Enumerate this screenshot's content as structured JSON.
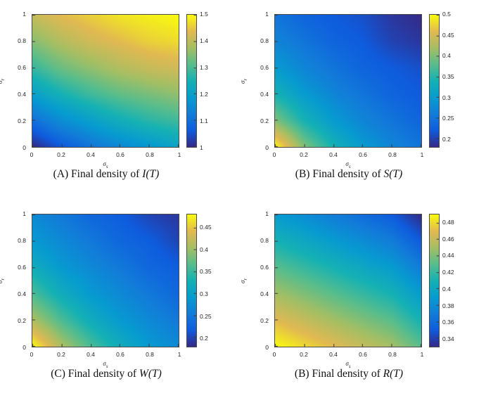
{
  "page": {
    "background": "#ffffff"
  },
  "colormap": {
    "name": "parula",
    "stops": [
      [
        0.0,
        53,
        42,
        135
      ],
      [
        0.125,
        15,
        92,
        221
      ],
      [
        0.25,
        18,
        125,
        216
      ],
      [
        0.375,
        7,
        156,
        207
      ],
      [
        0.5,
        21,
        177,
        180
      ],
      [
        0.625,
        89,
        189,
        140
      ],
      [
        0.75,
        165,
        190,
        100
      ],
      [
        0.875,
        225,
        185,
        82
      ],
      [
        1.0,
        249,
        251,
        14
      ]
    ]
  },
  "chart_data": [
    {
      "type": "heatmap",
      "caption_prefix": "(A) Final density of",
      "caption_math": "I(T)",
      "xlabel": {
        "base": "σ",
        "sub": "s"
      },
      "ylabel": {
        "base": "σ",
        "sub": "r"
      },
      "x_ticks": [
        "0",
        "0.2",
        "0.4",
        "0.6",
        "0.8",
        "1"
      ],
      "y_ticks": [
        "0",
        "0.2",
        "0.4",
        "0.6",
        "0.8",
        "1"
      ],
      "x_range": [
        0,
        1
      ],
      "y_range": [
        0,
        1
      ],
      "value_range": [
        1.0,
        1.5
      ],
      "colorbar_tick_values": [
        1,
        1.1,
        1.2,
        1.3,
        1.4,
        1.5
      ],
      "colorbar_tick_labels": [
        "1",
        "1.1",
        "1.2",
        "1.3",
        "1.4",
        "1.5"
      ],
      "grid_note": "rows are sigma_r ascending bottom-to-top, cols are sigma_s ascending left-to-right",
      "grid_x": [
        0,
        0.2,
        0.4,
        0.6,
        0.8,
        1
      ],
      "grid_y": [
        0,
        0.2,
        0.4,
        0.6,
        0.8,
        1
      ],
      "values": [
        [
          1.0,
          1.06,
          1.11,
          1.15,
          1.18,
          1.21
        ],
        [
          1.1,
          1.16,
          1.2,
          1.24,
          1.27,
          1.29
        ],
        [
          1.2,
          1.25,
          1.29,
          1.32,
          1.34,
          1.36
        ],
        [
          1.28,
          1.33,
          1.36,
          1.39,
          1.41,
          1.42
        ],
        [
          1.35,
          1.39,
          1.42,
          1.44,
          1.46,
          1.47
        ],
        [
          1.41,
          1.44,
          1.46,
          1.48,
          1.49,
          1.5
        ]
      ]
    },
    {
      "type": "heatmap",
      "caption_prefix": "(B) Final density of",
      "caption_math": "S(T)",
      "xlabel": {
        "base": "σ",
        "sub": "s"
      },
      "ylabel": {
        "base": "σ",
        "sub": "r"
      },
      "x_ticks": [
        "0",
        "0.2",
        "0.4",
        "0.6",
        "0.8",
        "1"
      ],
      "y_ticks": [
        "0",
        "0.2",
        "0.4",
        "0.6",
        "0.8",
        "1"
      ],
      "x_range": [
        0,
        1
      ],
      "y_range": [
        0,
        1
      ],
      "value_range": [
        0.18,
        0.5
      ],
      "colorbar_tick_values": [
        0.2,
        0.25,
        0.3,
        0.35,
        0.4,
        0.45,
        0.5
      ],
      "colorbar_tick_labels": [
        "0.2",
        "0.25",
        "0.3",
        "0.35",
        "0.4",
        "0.45",
        "0.5"
      ],
      "grid_note": "rows are sigma_r ascending bottom-to-top, cols are sigma_s ascending left-to-right",
      "grid_x": [
        0,
        0.2,
        0.4,
        0.6,
        0.8,
        1
      ],
      "grid_y": [
        0,
        0.2,
        0.4,
        0.6,
        0.8,
        1
      ],
      "values": [
        [
          0.5,
          0.4,
          0.34,
          0.3,
          0.27,
          0.25
        ],
        [
          0.4,
          0.34,
          0.3,
          0.27,
          0.25,
          0.23
        ],
        [
          0.34,
          0.3,
          0.27,
          0.25,
          0.23,
          0.22
        ],
        [
          0.3,
          0.27,
          0.25,
          0.23,
          0.22,
          0.21
        ],
        [
          0.27,
          0.25,
          0.23,
          0.22,
          0.2,
          0.19
        ],
        [
          0.25,
          0.23,
          0.22,
          0.21,
          0.19,
          0.18
        ]
      ]
    },
    {
      "type": "heatmap",
      "caption_prefix": "(C) Final density of",
      "caption_math": "W(T)",
      "xlabel": {
        "base": "σ",
        "sub": "s"
      },
      "ylabel": {
        "base": "σ",
        "sub": "r"
      },
      "x_ticks": [
        "0",
        "0.2",
        "0.4",
        "0.6",
        "0.8",
        "1"
      ],
      "y_ticks": [
        "0",
        "0.2",
        "0.4",
        "0.6",
        "0.8",
        "1"
      ],
      "x_range": [
        0,
        1
      ],
      "y_range": [
        0,
        1
      ],
      "value_range": [
        0.18,
        0.48
      ],
      "colorbar_tick_values": [
        0.2,
        0.25,
        0.3,
        0.35,
        0.4,
        0.45
      ],
      "colorbar_tick_labels": [
        "0.2",
        "0.25",
        "0.3",
        "0.35",
        "0.4",
        "0.45"
      ],
      "grid_note": "rows are sigma_r ascending bottom-to-top, cols are sigma_s ascending left-to-right",
      "grid_x": [
        0,
        0.2,
        0.4,
        0.6,
        0.8,
        1
      ],
      "grid_y": [
        0,
        0.2,
        0.4,
        0.6,
        0.8,
        1
      ],
      "values": [
        [
          0.48,
          0.41,
          0.36,
          0.32,
          0.29,
          0.27
        ],
        [
          0.41,
          0.36,
          0.32,
          0.29,
          0.27,
          0.25
        ],
        [
          0.36,
          0.32,
          0.29,
          0.27,
          0.25,
          0.23
        ],
        [
          0.32,
          0.29,
          0.27,
          0.25,
          0.23,
          0.22
        ],
        [
          0.29,
          0.27,
          0.25,
          0.23,
          0.22,
          0.2
        ],
        [
          0.27,
          0.25,
          0.23,
          0.22,
          0.2,
          0.19
        ]
      ]
    },
    {
      "type": "heatmap",
      "caption_prefix": "(B) Final density of",
      "caption_math": "R(T)",
      "xlabel": {
        "base": "σ",
        "sub": "s"
      },
      "ylabel": {
        "base": "σ",
        "sub": "r"
      },
      "x_ticks": [
        "0",
        "0.2",
        "0.4",
        "0.6",
        "0.8",
        "1"
      ],
      "y_ticks": [
        "0",
        "0.2",
        "0.4",
        "0.6",
        "0.8",
        "1"
      ],
      "x_range": [
        0,
        1
      ],
      "y_range": [
        0,
        1
      ],
      "value_range": [
        0.33,
        0.49
      ],
      "colorbar_tick_values": [
        0.34,
        0.36,
        0.38,
        0.4,
        0.42,
        0.44,
        0.46,
        0.48
      ],
      "colorbar_tick_labels": [
        "0.34",
        "0.36",
        "0.38",
        "0.4",
        "0.42",
        "0.44",
        "0.46",
        "0.48"
      ],
      "grid_note": "rows are sigma_r ascending bottom-to-top, cols are sigma_s ascending left-to-right",
      "grid_x": [
        0,
        0.2,
        0.4,
        0.6,
        0.8,
        1
      ],
      "grid_y": [
        0,
        0.2,
        0.4,
        0.6,
        0.8,
        1
      ],
      "values": [
        [
          0.49,
          0.48,
          0.47,
          0.46,
          0.45,
          0.43
        ],
        [
          0.47,
          0.46,
          0.45,
          0.44,
          0.43,
          0.41
        ],
        [
          0.45,
          0.44,
          0.43,
          0.42,
          0.41,
          0.39
        ],
        [
          0.43,
          0.42,
          0.41,
          0.4,
          0.39,
          0.37
        ],
        [
          0.41,
          0.4,
          0.39,
          0.38,
          0.37,
          0.35
        ],
        [
          0.39,
          0.38,
          0.37,
          0.36,
          0.35,
          0.33
        ]
      ]
    }
  ]
}
